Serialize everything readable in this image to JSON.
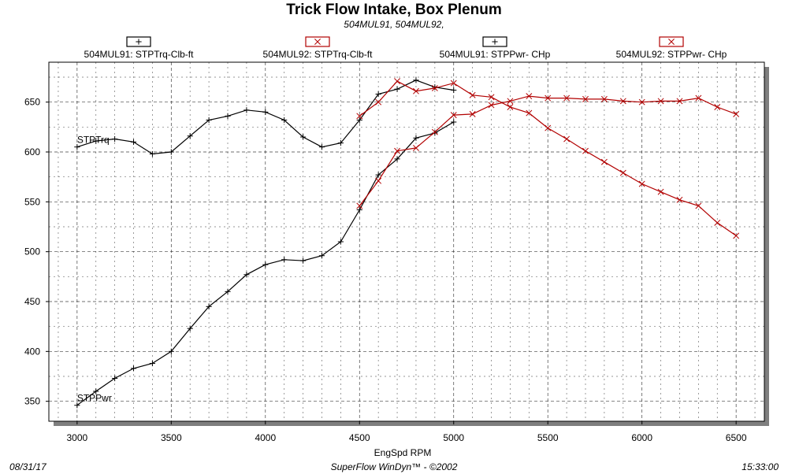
{
  "chart_data": {
    "type": "line",
    "title": "Trick Flow Intake, Box Plenum",
    "subtitle": "504MUL91, 504MUL92,",
    "xlabel": "EngSpd  RPM",
    "ylabel": "",
    "xlim": [
      2850,
      6650
    ],
    "ylim": [
      330,
      690
    ],
    "x_ticks": [
      "3000",
      "3500",
      "4000",
      "4500",
      "5000",
      "5500",
      "6000",
      "6500"
    ],
    "y_ticks": [
      "350",
      "400",
      "450",
      "500",
      "550",
      "600",
      "650"
    ],
    "x_minor_step": 100,
    "y_minor_step": 25,
    "grid": true,
    "legend_position": "top",
    "series": [
      {
        "name": "504MUL91: STPTrq-Clb-ft",
        "color": "#000000",
        "marker": "plus",
        "x": [
          3000,
          3100,
          3200,
          3300,
          3400,
          3500,
          3600,
          3700,
          3800,
          3900,
          4000,
          4100,
          4200,
          4300,
          4400,
          4500,
          4600,
          4700,
          4800,
          4900,
          5000
        ],
        "y": [
          605,
          611,
          613,
          610,
          598,
          600,
          616,
          632,
          636,
          642,
          640,
          632,
          615,
          605,
          609,
          632,
          658,
          663,
          672,
          665,
          662
        ]
      },
      {
        "name": "504MUL92: STPTrq-Clb-ft",
        "color": "#b20000",
        "marker": "x",
        "x": [
          4500,
          4600,
          4700,
          4800,
          4900,
          5000,
          5100,
          5200,
          5300,
          5400,
          5500,
          5600,
          5700,
          5800,
          5900,
          6000,
          6100,
          6200,
          6300,
          6400,
          6500
        ],
        "y": [
          636,
          650,
          671,
          661,
          664,
          669,
          657,
          655,
          645,
          639,
          624,
          613,
          601,
          590,
          579,
          568,
          560,
          552,
          546,
          529,
          516
        ]
      },
      {
        "name": "504MUL91: STPPwr- CHp",
        "color": "#000000",
        "marker": "plus",
        "x": [
          3000,
          3100,
          3200,
          3300,
          3400,
          3500,
          3600,
          3700,
          3800,
          3900,
          4000,
          4100,
          4200,
          4300,
          4400,
          4500,
          4600,
          4700,
          4800,
          4900,
          5000
        ],
        "y": [
          346,
          360,
          373,
          383,
          388,
          400,
          423,
          445,
          460,
          477,
          487,
          492,
          491,
          496,
          510,
          542,
          577,
          593,
          614,
          619,
          630
        ]
      },
      {
        "name": "504MUL92: STPPwr- CHp",
        "color": "#b20000",
        "marker": "x",
        "x": [
          4500,
          4600,
          4700,
          4800,
          4900,
          5000,
          5100,
          5200,
          5300,
          5400,
          5500,
          5600,
          5700,
          5800,
          5900,
          6000,
          6100,
          6200,
          6300,
          6400,
          6500
        ],
        "y": [
          546,
          571,
          601,
          604,
          620,
          637,
          638,
          647,
          651,
          656,
          654,
          654,
          653,
          653,
          651,
          650,
          651,
          651,
          654,
          645,
          638
        ]
      }
    ],
    "annotations": [
      {
        "text": "STPTrq",
        "x": 3000,
        "y": 609
      },
      {
        "text": "STPPwr",
        "x": 3000,
        "y": 350
      }
    ]
  },
  "footer": {
    "date": "08/31/17",
    "software": "SuperFlow WinDyn™ - ©2002",
    "time": "15:33:00"
  }
}
